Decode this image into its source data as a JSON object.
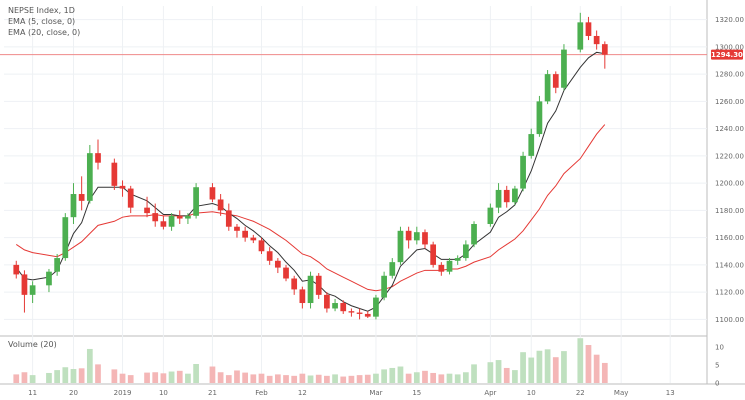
{
  "legend": {
    "symbol": "NEPSE Index, 1D",
    "ema_short": "EMA (5, close, 0)",
    "ema_long": "EMA (20, close, 0)",
    "volume": "Volume (20)"
  },
  "colors": {
    "up": "#4caf50",
    "down": "#e53935",
    "up_vol": "#bfe0bf",
    "down_vol": "#f4b6b6",
    "ema_short": "#333333",
    "ema_long": "#e53935",
    "price_line": "#ef8a8a",
    "grid": "#eef1f4",
    "axis": "#888888",
    "tag_bg": "#e53935"
  },
  "chart_data": {
    "type": "candlestick",
    "title": "NEPSE Index, 1D",
    "ylim": [
      1090,
      1330
    ],
    "y_ticks": [
      1100,
      1120,
      1140,
      1160,
      1180,
      1200,
      1220,
      1240,
      1260,
      1280,
      1300,
      1320
    ],
    "x_ticks": [
      {
        "label": "11",
        "index": 3
      },
      {
        "label": "20",
        "index": 8
      },
      {
        "label": "2019",
        "index": 14
      },
      {
        "label": "10",
        "index": 19
      },
      {
        "label": "21",
        "index": 25
      },
      {
        "label": "Feb",
        "index": 31
      },
      {
        "label": "12",
        "index": 36
      },
      {
        "label": "Mar",
        "index": 45
      },
      {
        "label": "15",
        "index": 50
      },
      {
        "label": "Apr",
        "index": 59
      },
      {
        "label": "10",
        "index": 64
      },
      {
        "label": "22",
        "index": 70
      },
      {
        "label": "May",
        "index": 75
      },
      {
        "label": "13",
        "index": 81
      }
    ],
    "last_price_label": "1294.30",
    "last_price": 1294.3,
    "volume_ticks": [
      {
        "label": "10",
        "value": 10
      },
      {
        "label": "5",
        "value": 5
      },
      {
        "label": "0",
        "value": 0
      }
    ],
    "volume_max": 12,
    "total_slots": 86,
    "candles": [
      [
        1140,
        1143,
        1130,
        1133
      ],
      [
        1133,
        1136,
        1105,
        1118
      ],
      [
        1118,
        1128,
        1112,
        1125
      ],
      [
        1125,
        1137,
        1120,
        1135
      ],
      [
        1135,
        1148,
        1132,
        1145
      ],
      [
        1145,
        1178,
        1143,
        1175
      ],
      [
        1175,
        1200,
        1170,
        1192
      ],
      [
        1192,
        1205,
        1180,
        1187
      ],
      [
        1187,
        1228,
        1185,
        1222
      ],
      [
        1222,
        1232,
        1210,
        1215
      ],
      [
        1215,
        1218,
        1195,
        1198
      ],
      [
        1198,
        1202,
        1190,
        1196
      ],
      [
        1196,
        1198,
        1178,
        1182
      ],
      [
        1182,
        1190,
        1175,
        1178
      ],
      [
        1178,
        1185,
        1168,
        1172
      ],
      [
        1172,
        1176,
        1166,
        1168
      ],
      [
        1168,
        1178,
        1165,
        1176
      ],
      [
        1176,
        1180,
        1170,
        1174
      ],
      [
        1174,
        1178,
        1170,
        1176
      ],
      [
        1176,
        1200,
        1174,
        1197
      ],
      [
        1197,
        1200,
        1186,
        1188
      ],
      [
        1188,
        1192,
        1176,
        1180
      ],
      [
        1180,
        1185,
        1165,
        1168
      ],
      [
        1168,
        1170,
        1160,
        1165
      ],
      [
        1165,
        1168,
        1157,
        1160
      ],
      [
        1160,
        1162,
        1156,
        1158
      ],
      [
        1158,
        1160,
        1148,
        1150
      ],
      [
        1150,
        1153,
        1140,
        1143
      ],
      [
        1143,
        1145,
        1134,
        1138
      ],
      [
        1138,
        1140,
        1128,
        1130
      ],
      [
        1130,
        1132,
        1118,
        1122
      ],
      [
        1122,
        1124,
        1108,
        1112
      ],
      [
        1112,
        1135,
        1108,
        1132
      ],
      [
        1132,
        1134,
        1115,
        1118
      ],
      [
        1118,
        1120,
        1105,
        1108
      ],
      [
        1108,
        1115,
        1106,
        1112
      ],
      [
        1112,
        1114,
        1104,
        1106
      ],
      [
        1106,
        1108,
        1102,
        1105
      ],
      [
        1105,
        1108,
        1100,
        1104
      ],
      [
        1104,
        1106,
        1101,
        1102
      ],
      [
        1102,
        1118,
        1100,
        1116
      ],
      [
        1116,
        1135,
        1114,
        1132
      ],
      [
        1132,
        1145,
        1130,
        1142
      ],
      [
        1142,
        1168,
        1140,
        1165
      ],
      [
        1165,
        1168,
        1152,
        1158
      ],
      [
        1158,
        1168,
        1155,
        1164
      ],
      [
        1164,
        1166,
        1152,
        1155
      ],
      [
        1155,
        1157,
        1138,
        1140
      ],
      [
        1140,
        1142,
        1132,
        1135
      ],
      [
        1135,
        1145,
        1133,
        1143
      ],
      [
        1143,
        1147,
        1140,
        1145
      ],
      [
        1145,
        1158,
        1143,
        1155
      ],
      [
        1155,
        1172,
        1153,
        1170
      ],
      [
        1170,
        1185,
        1168,
        1182
      ],
      [
        1182,
        1200,
        1178,
        1195
      ],
      [
        1195,
        1198,
        1182,
        1186
      ],
      [
        1186,
        1198,
        1184,
        1196
      ],
      [
        1196,
        1223,
        1194,
        1220
      ],
      [
        1220,
        1240,
        1218,
        1236
      ],
      [
        1236,
        1264,
        1234,
        1260
      ],
      [
        1260,
        1283,
        1258,
        1280
      ],
      [
        1280,
        1282,
        1266,
        1270
      ],
      [
        1270,
        1302,
        1268,
        1298
      ],
      [
        1298,
        1325,
        1296,
        1318
      ],
      [
        1318,
        1322,
        1305,
        1308
      ],
      [
        1308,
        1312,
        1298,
        1302
      ],
      [
        1302,
        1304,
        1284,
        1294.3
      ]
    ],
    "candle_slots": [
      1,
      2,
      3,
      5,
      6,
      7,
      8,
      9,
      10,
      11,
      13,
      14,
      15,
      17,
      18,
      19,
      20,
      21,
      22,
      23,
      25,
      26,
      27,
      28,
      29,
      30,
      31,
      32,
      33,
      34,
      35,
      36,
      37,
      38,
      39,
      40,
      41,
      42,
      43,
      44,
      45,
      46,
      47,
      48,
      49,
      50,
      51,
      52,
      53,
      54,
      55,
      56,
      57,
      59,
      60,
      61,
      62,
      63,
      64,
      65,
      66,
      67,
      68,
      70,
      71,
      72,
      73
    ],
    "volumes": [
      2.4,
      3.0,
      2.2,
      2.8,
      3.6,
      4.4,
      3.9,
      4.1,
      9.5,
      5.2,
      3.8,
      2.6,
      2.2,
      2.9,
      3.0,
      2.7,
      3.2,
      3.4,
      2.6,
      5.3,
      4.6,
      3.0,
      2.2,
      3.5,
      2.9,
      2.4,
      2.6,
      2.0,
      2.4,
      2.2,
      2.0,
      2.6,
      2.1,
      2.3,
      2.0,
      2.4,
      1.8,
      2.0,
      2.2,
      2.3,
      2.6,
      3.8,
      4.2,
      4.6,
      2.6,
      3.0,
      3.4,
      2.8,
      2.4,
      2.6,
      2.4,
      3.0,
      5.2,
      5.8,
      6.4,
      4.2,
      3.6,
      8.6,
      7.1,
      9.0,
      9.4,
      7.2,
      8.9,
      12.5,
      10.6,
      7.9,
      5.6
    ],
    "ema_short": [
      1138,
      1130,
      1129,
      1131,
      1136,
      1149,
      1163,
      1171,
      1188,
      1197,
      1197,
      1197,
      1192,
      1187,
      1182,
      1177,
      1177,
      1176,
      1176,
      1183,
      1185,
      1183,
      1178,
      1174,
      1169,
      1165,
      1160,
      1154,
      1149,
      1142,
      1136,
      1128,
      1129,
      1125,
      1119,
      1117,
      1113,
      1110,
      1108,
      1106,
      1109,
      1117,
      1125,
      1139,
      1145,
      1151,
      1152,
      1148,
      1144,
      1144,
      1144,
      1148,
      1155,
      1164,
      1175,
      1179,
      1184,
      1196,
      1209,
      1226,
      1244,
      1253,
      1268,
      1285,
      1292,
      1296,
      1295
    ],
    "ema_long": [
      1155,
      1151,
      1149,
      1147,
      1146,
      1149,
      1153,
      1157,
      1163,
      1169,
      1172,
      1175,
      1176,
      1176,
      1177,
      1176,
      1176,
      1176,
      1176,
      1178,
      1179,
      1178,
      1177,
      1176,
      1174,
      1172,
      1169,
      1166,
      1162,
      1158,
      1153,
      1148,
      1146,
      1142,
      1137,
      1134,
      1131,
      1128,
      1125,
      1122,
      1121,
      1122,
      1124,
      1128,
      1131,
      1134,
      1136,
      1136,
      1136,
      1137,
      1137,
      1139,
      1142,
      1146,
      1151,
      1155,
      1159,
      1165,
      1173,
      1181,
      1191,
      1198,
      1207,
      1218,
      1227,
      1236,
      1243
    ]
  }
}
